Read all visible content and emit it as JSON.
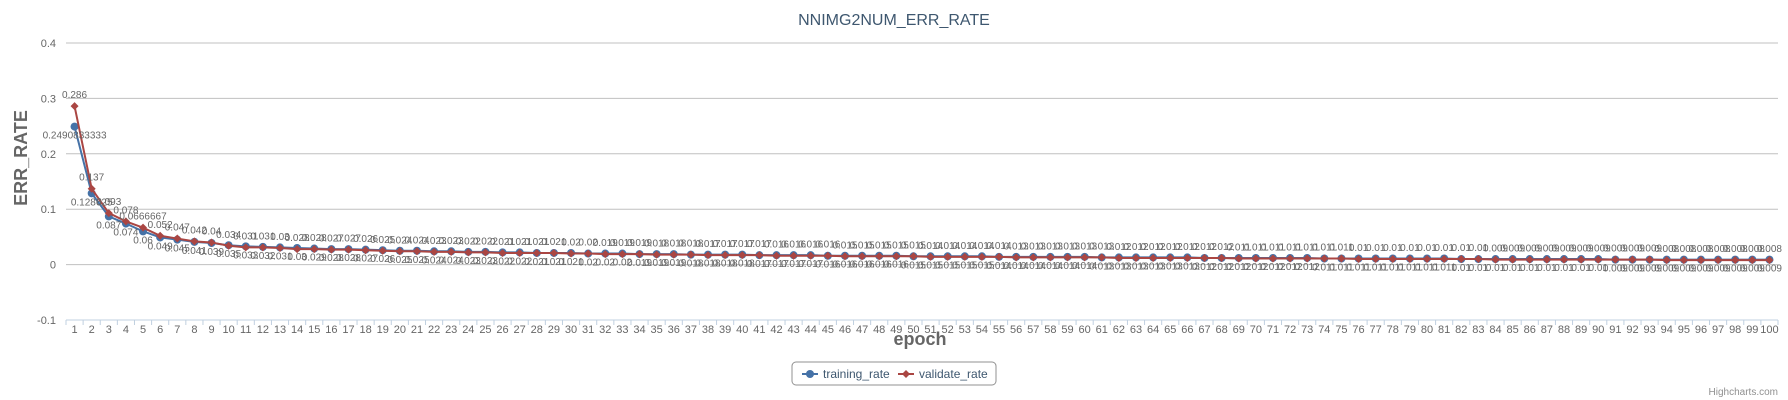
{
  "chart_data": {
    "type": "line",
    "title": "NNIMG2NUM_ERR_RATE",
    "xlabel": "epoch",
    "ylabel": "ERR_RATE",
    "ylim": [
      -0.1,
      0.4
    ],
    "yticks": [
      -0.1,
      0,
      0.1,
      0.2,
      0.3,
      0.4
    ],
    "grid": true,
    "legend_position": "bottom-center",
    "credits": "Highcharts.com",
    "x": [
      1,
      2,
      3,
      4,
      5,
      6,
      7,
      8,
      9,
      10,
      11,
      12,
      13,
      14,
      15,
      16,
      17,
      18,
      19,
      20,
      21,
      22,
      23,
      24,
      25,
      26,
      27,
      28,
      29,
      30,
      31,
      32,
      33,
      34,
      35,
      36,
      37,
      38,
      39,
      40,
      41,
      42,
      43,
      44,
      45,
      46,
      47,
      48,
      49,
      50,
      51,
      52,
      53,
      54,
      55,
      56,
      57,
      58,
      59,
      60,
      61,
      62,
      63,
      64,
      65,
      66,
      67,
      68,
      69,
      70,
      71,
      72,
      73,
      74,
      75,
      76,
      77,
      78,
      79,
      80,
      81,
      82,
      83,
      84,
      85,
      86,
      87,
      88,
      89,
      90,
      91,
      92,
      93,
      94,
      95,
      96,
      97,
      98,
      99,
      100
    ],
    "series": [
      {
        "name": "training_rate",
        "color": "#4572a7",
        "marker": "circle",
        "values": [
          0.2490833333,
          0.128625,
          0.087,
          0.074,
          0.06,
          0.049,
          0.045,
          0.041,
          0.039,
          0.035,
          0.033,
          0.032,
          0.031,
          0.03,
          0.029,
          0.028,
          0.028,
          0.027,
          0.026,
          0.025,
          0.025,
          0.024,
          0.024,
          0.023,
          0.023,
          0.022,
          0.022,
          0.021,
          0.021,
          0.021,
          0.02,
          0.02,
          0.02,
          0.019,
          0.019,
          0.019,
          0.018,
          0.018,
          0.018,
          0.018,
          0.017,
          0.017,
          0.017,
          0.017,
          0.016,
          0.016,
          0.016,
          0.016,
          0.016,
          0.015,
          0.015,
          0.015,
          0.015,
          0.015,
          0.014,
          0.014,
          0.014,
          0.014,
          0.014,
          0.014,
          0.013,
          0.013,
          0.013,
          0.013,
          0.013,
          0.013,
          0.012,
          0.012,
          0.012,
          0.012,
          0.012,
          0.012,
          0.012,
          0.011,
          0.011,
          0.011,
          0.011,
          0.011,
          0.011,
          0.011,
          0.011,
          0.01,
          0.01,
          0.01,
          0.01,
          0.01,
          0.01,
          0.01,
          0.01,
          0.01,
          0.009,
          0.009,
          0.009,
          0.009,
          0.009,
          0.009,
          0.009,
          0.009,
          0.009,
          0.009
        ]
      },
      {
        "name": "validate_rate",
        "color": "#aa4643",
        "marker": "diamond",
        "values": [
          0.286,
          0.137,
          0.093,
          0.078,
          0.0666667,
          0.052,
          0.047,
          0.042,
          0.04,
          0.034,
          0.031,
          0.031,
          0.03,
          0.028,
          0.028,
          0.027,
          0.027,
          0.026,
          0.025,
          0.024,
          0.024,
          0.023,
          0.023,
          0.022,
          0.022,
          0.021,
          0.021,
          0.021,
          0.021,
          0.02,
          0.02,
          0.019,
          0.019,
          0.019,
          0.018,
          0.018,
          0.018,
          0.017,
          0.017,
          0.017,
          0.017,
          0.016,
          0.016,
          0.016,
          0.016,
          0.015,
          0.015,
          0.015,
          0.015,
          0.015,
          0.014,
          0.014,
          0.014,
          0.014,
          0.014,
          0.013,
          0.013,
          0.013,
          0.013,
          0.013,
          0.013,
          0.012,
          0.012,
          0.012,
          0.012,
          0.012,
          0.012,
          0.012,
          0.011,
          0.011,
          0.011,
          0.011,
          0.011,
          0.011,
          0.011,
          0.01,
          0.01,
          0.01,
          0.01,
          0.01,
          0.01,
          0.01,
          0.01,
          0.009,
          0.009,
          0.009,
          0.009,
          0.009,
          0.009,
          0.009,
          0.009,
          0.009,
          0.009,
          0.008,
          0.008,
          0.008,
          0.008,
          0.008,
          0.008,
          0.008
        ]
      }
    ]
  }
}
